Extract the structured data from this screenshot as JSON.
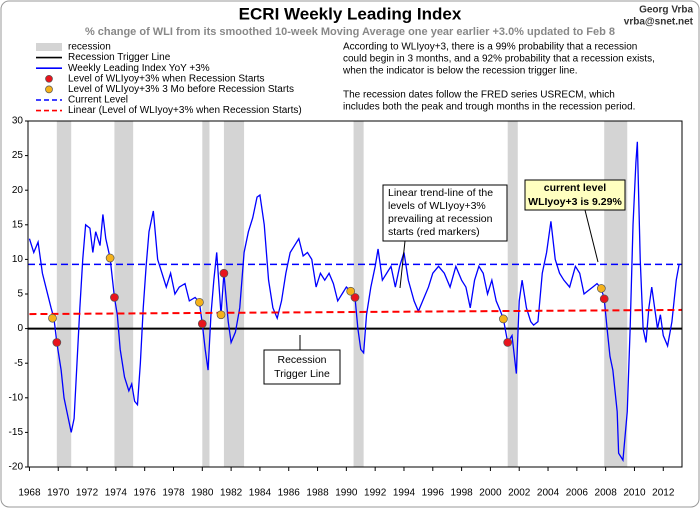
{
  "chart_data": {
    "type": "line",
    "title": "ECRI Weekly Leading Index",
    "subtitle": "% change of WLI from its smoothed 10-week Moving Average one year earlier +3.0% updated to Feb 8",
    "author": "Georg Vrba",
    "email": "vrba@snet.net",
    "notes": [
      [
        "According to WLIyoy+3, there is a 99% probability that a recession",
        "could begin in 3 months, and a 92% probability that a recession exists,",
        "when the indicator is below the recession trigger line."
      ],
      [
        "The recession dates follow the FRED series USRECM, which",
        "includes both the peak and trough months in the recession period."
      ]
    ],
    "annotations": [
      [
        "Recession",
        "Trigger Line"
      ],
      [
        "Linear trend-line of the",
        "levels of WLIyoy+3%",
        "prevailing at recession",
        "starts (red markers)"
      ],
      [
        "current level",
        "WLIyoy+3 is 9.29%"
      ]
    ],
    "xlim": [
      1967.9,
      2013.3
    ],
    "xticks": [
      1968,
      1970,
      1972,
      1974,
      1976,
      1978,
      1980,
      1982,
      1984,
      1986,
      1988,
      1990,
      1992,
      1994,
      1996,
      1998,
      2000,
      2002,
      2004,
      2006,
      2008,
      2010,
      2012
    ],
    "ylim": [
      -20,
      30
    ],
    "yticks": [
      -20,
      -15,
      -10,
      -5,
      0,
      5,
      10,
      15,
      20,
      25,
      30
    ],
    "grid": false,
    "recession": {
      "name": "recession",
      "color": "#d4d4d4",
      "spans": [
        [
          1969.9,
          1970.9
        ],
        [
          1973.9,
          1975.2
        ],
        [
          1980.0,
          1980.5
        ],
        [
          1981.5,
          1982.9
        ],
        [
          1990.5,
          1991.2
        ],
        [
          2001.2,
          2001.9
        ],
        [
          2007.9,
          2009.5
        ]
      ]
    },
    "series": [
      {
        "name": "Recession Trigger Line",
        "color": "#000000",
        "style": "line",
        "level": 0
      },
      {
        "name": "Weekly Leading Index YoY +3%",
        "color": "#0000ff",
        "style": "line",
        "x": [
          1968.0,
          1968.3,
          1968.6,
          1968.9,
          1969.2,
          1969.5,
          1969.7,
          1969.9,
          1970.2,
          1970.4,
          1970.6,
          1970.9,
          1971.1,
          1971.3,
          1971.5,
          1971.7,
          1971.9,
          1972.2,
          1972.4,
          1972.6,
          1972.9,
          1973.1,
          1973.3,
          1973.6,
          1973.9,
          1974.1,
          1974.3,
          1974.6,
          1974.9,
          1975.1,
          1975.3,
          1975.5,
          1975.7,
          1975.9,
          1976.1,
          1976.3,
          1976.6,
          1976.9,
          1977.2,
          1977.5,
          1977.8,
          1978.1,
          1978.4,
          1978.8,
          1979.1,
          1979.5,
          1979.8,
          1980.0,
          1980.2,
          1980.4,
          1980.6,
          1980.8,
          1981.0,
          1981.2,
          1981.3,
          1981.5,
          1981.8,
          1982.0,
          1982.3,
          1982.6,
          1982.9,
          1983.2,
          1983.5,
          1983.8,
          1984.0,
          1984.3,
          1984.6,
          1984.9,
          1985.2,
          1985.5,
          1985.8,
          1986.1,
          1986.4,
          1986.7,
          1987.0,
          1987.3,
          1987.6,
          1987.9,
          1988.2,
          1988.5,
          1988.8,
          1989.1,
          1989.4,
          1989.7,
          1990.0,
          1990.3,
          1990.6,
          1990.8,
          1991.0,
          1991.2,
          1991.4,
          1991.7,
          1992.0,
          1992.2,
          1992.5,
          1992.8,
          1993.1,
          1993.4,
          1993.7,
          1994.0,
          1994.3,
          1994.7,
          1995.0,
          1995.3,
          1995.7,
          1996.0,
          1996.4,
          1996.8,
          1997.2,
          1997.6,
          1998.0,
          1998.3,
          1998.6,
          1998.9,
          1999.2,
          1999.5,
          1999.8,
          2000.1,
          2000.4,
          2000.7,
          2000.9,
          2001.2,
          2001.5,
          2001.8,
          2002.0,
          2002.2,
          2002.5,
          2002.8,
          2003.0,
          2003.3,
          2003.6,
          2003.9,
          2004.2,
          2004.5,
          2004.8,
          2005.1,
          2005.5,
          2005.9,
          2006.2,
          2006.5,
          2006.8,
          2007.1,
          2007.4,
          2007.7,
          2007.9,
          2008.1,
          2008.3,
          2008.5,
          2008.8,
          2008.9,
          2009.2,
          2009.5,
          2009.7,
          2009.9,
          2010.1,
          2010.2,
          2010.4,
          2010.6,
          2010.8,
          2011.0,
          2011.2,
          2011.4,
          2011.6,
          2011.8,
          2012.0,
          2012.3,
          2012.6,
          2012.9,
          2013.1
        ],
        "values": [
          13,
          11,
          12.5,
          8,
          5.5,
          3,
          1.5,
          -2,
          -6,
          -10,
          -12,
          -15,
          -13,
          -5,
          3,
          10,
          15,
          14.5,
          11,
          14,
          12,
          16.5,
          13,
          10.2,
          4.5,
          2,
          -3,
          -7,
          -9,
          -8,
          -10.5,
          -11,
          -5,
          3,
          9,
          14,
          17,
          10,
          8,
          6,
          8,
          5,
          6,
          6.5,
          4,
          4.5,
          3.8,
          0.7,
          -3,
          -6,
          2,
          7,
          11,
          5,
          2,
          8,
          1,
          -2,
          -0.5,
          3,
          11,
          14,
          16,
          19,
          19.3,
          15,
          7,
          3,
          1.5,
          4,
          8,
          11,
          12,
          13,
          10.5,
          11,
          10,
          6,
          8,
          7,
          8,
          6.5,
          4,
          5,
          6,
          5.4,
          4.5,
          0,
          -3,
          -3.5,
          2,
          6,
          9,
          11.5,
          7,
          8,
          9,
          6,
          9,
          11,
          7,
          4,
          2.5,
          4,
          6,
          8,
          9,
          8,
          6,
          9,
          7,
          6,
          3,
          7,
          9,
          8,
          5,
          7,
          4,
          2.5,
          1.4,
          -2,
          -1,
          -6.5,
          4,
          7,
          3,
          1,
          0.5,
          1,
          8,
          11,
          15.5,
          10,
          8,
          7,
          6,
          9,
          8,
          5,
          5.5,
          6,
          6.5,
          5.8,
          4.3,
          0,
          -4,
          -6,
          -12,
          -18,
          -19,
          -12,
          0,
          15,
          24,
          27,
          10,
          0,
          -2,
          3,
          6,
          3,
          0,
          2,
          -1,
          -2.5,
          1,
          7,
          9.29
        ]
      },
      {
        "name": "Level of WLIyoy+3% when Recession Starts",
        "color": "#e8141d",
        "style": "marker",
        "x": [
          1969.9,
          1973.9,
          1980.0,
          1981.5,
          1990.6,
          2001.2,
          2007.9
        ],
        "values": [
          -2,
          4.5,
          0.7,
          8,
          4.5,
          -2,
          4.3
        ]
      },
      {
        "name": "Level of WLIyoy+3% 3 Mo before Recession Starts",
        "color": "#f5b21b",
        "style": "marker",
        "x": [
          1969.6,
          1973.6,
          1979.8,
          1981.3,
          1990.3,
          2000.9,
          2007.7
        ],
        "values": [
          1.5,
          10.2,
          3.8,
          2,
          5.4,
          1.4,
          5.8
        ]
      },
      {
        "name": "Current Level",
        "color": "#0000ff",
        "style": "dash",
        "level": 9.29
      },
      {
        "name": "Linear (Level of WLIyoy+3% when Recession Starts)",
        "color": "#ff0000",
        "style": "dash",
        "x": [
          1968,
          2013.3
        ],
        "values": [
          2.1,
          2.7
        ]
      }
    ]
  }
}
